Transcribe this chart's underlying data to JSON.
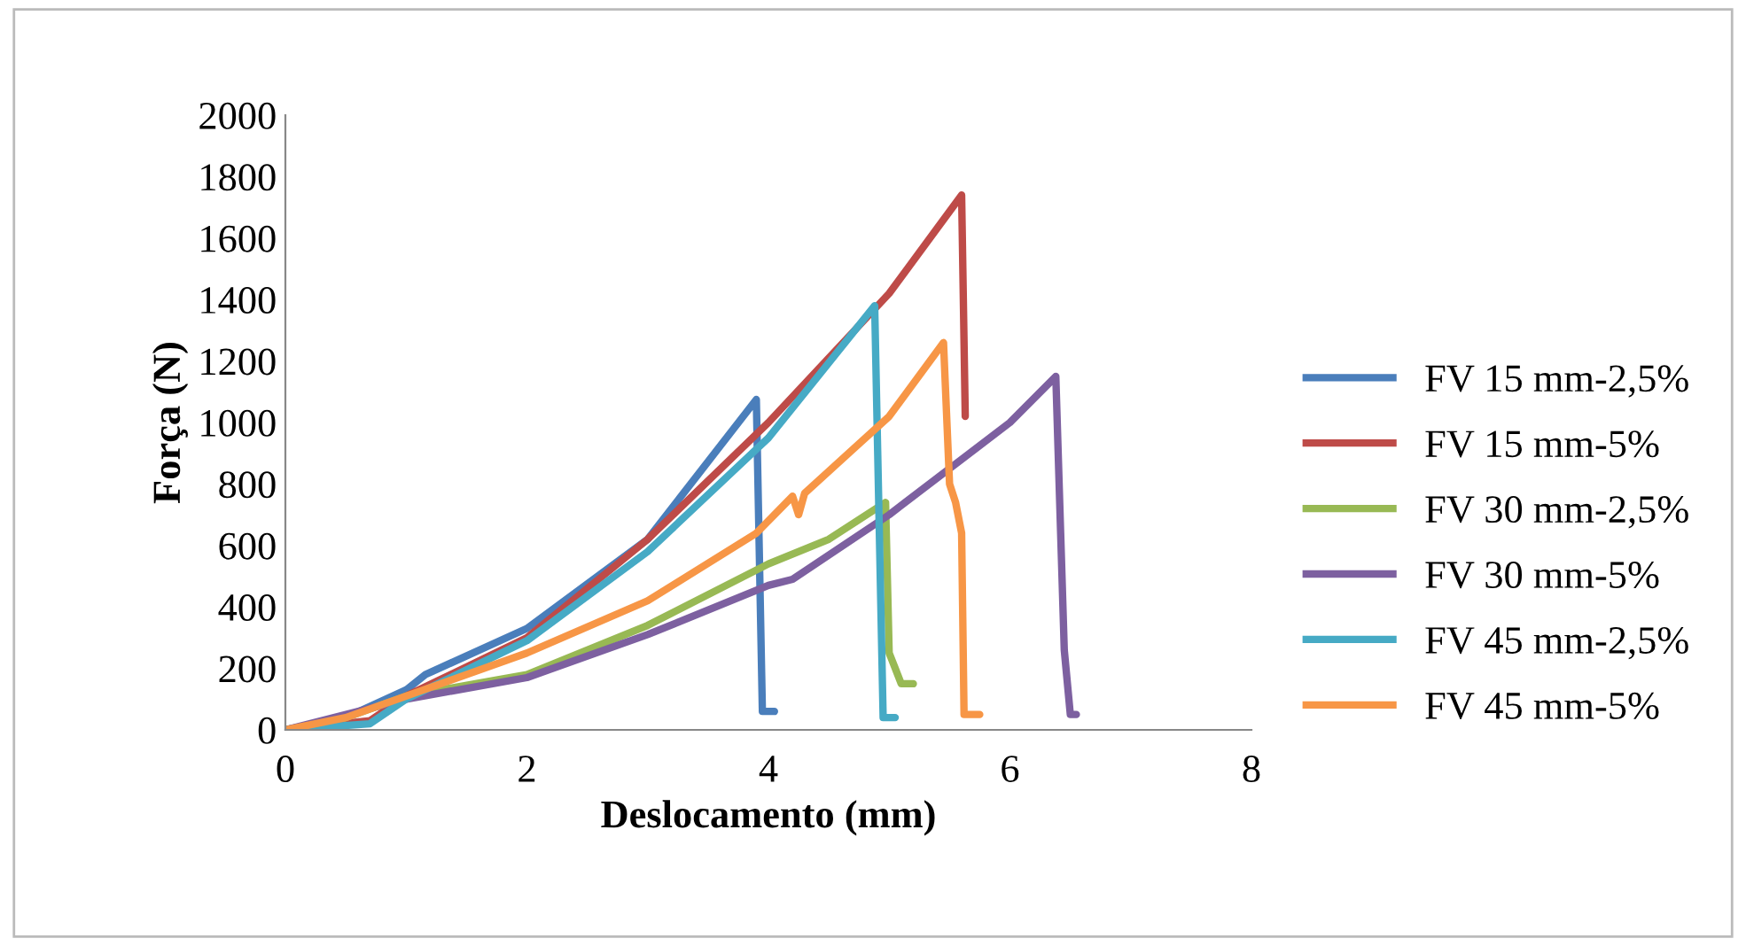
{
  "chart_data": {
    "type": "line",
    "xlabel": "Deslocamento (mm)",
    "ylabel": "Força (N)",
    "xlim": [
      0,
      8
    ],
    "xticks": [
      0,
      2,
      4,
      6,
      8
    ],
    "ylim": [
      0,
      2000
    ],
    "yticks": [
      0,
      200,
      400,
      600,
      800,
      1000,
      1200,
      1400,
      1600,
      1800,
      2000
    ],
    "grid": false,
    "legend": "right",
    "marker": "none",
    "line_style": "solid",
    "series": [
      {
        "name": "FV 15 mm-2,5%",
        "color": "#4a7ebb",
        "x": [
          0,
          0.5,
          1.0,
          1.16,
          2,
          3,
          3.9,
          3.95,
          4.05
        ],
        "values": [
          0,
          40,
          130,
          180,
          330,
          620,
          1075,
          60,
          60
        ]
      },
      {
        "name": "FV 15 mm-5%",
        "color": "#be4b48",
        "x": [
          0,
          0.7,
          1,
          2,
          3,
          4,
          5,
          5.6,
          5.63
        ],
        "values": [
          0,
          30,
          110,
          300,
          620,
          1000,
          1420,
          1740,
          1020
        ]
      },
      {
        "name": "FV 30 mm-2,5%",
        "color": "#98b954",
        "x": [
          0,
          0.5,
          1,
          2,
          3,
          4,
          4.5,
          4.97,
          5.0,
          5.05,
          5.1,
          5.2
        ],
        "values": [
          0,
          40,
          110,
          180,
          340,
          540,
          620,
          740,
          250,
          200,
          150,
          150
        ]
      },
      {
        "name": "FV 30 mm-5%",
        "color": "#7d60a0",
        "x": [
          0,
          1,
          2,
          3,
          4,
          4.2,
          5,
          6,
          6.38,
          6.42,
          6.45,
          6.5,
          6.55
        ],
        "values": [
          0,
          100,
          170,
          310,
          470,
          490,
          700,
          1000,
          1150,
          640,
          260,
          50,
          50
        ]
      },
      {
        "name": "FV 45 mm-2,5%",
        "color": "#46aac5",
        "x": [
          0,
          0.7,
          1,
          2,
          3,
          4,
          4.88,
          4.95,
          5.05
        ],
        "values": [
          0,
          20,
          100,
          290,
          580,
          950,
          1380,
          40,
          40
        ]
      },
      {
        "name": "FV 45 mm-5%",
        "color": "#f79646",
        "x": [
          0,
          0.5,
          1,
          2,
          3,
          3.9,
          4.2,
          4.25,
          4.3,
          5,
          5.45,
          5.5,
          5.55,
          5.6,
          5.62,
          5.75
        ],
        "values": [
          0,
          40,
          110,
          250,
          420,
          640,
          760,
          700,
          770,
          1020,
          1260,
          800,
          740,
          640,
          50,
          50
        ]
      }
    ]
  }
}
